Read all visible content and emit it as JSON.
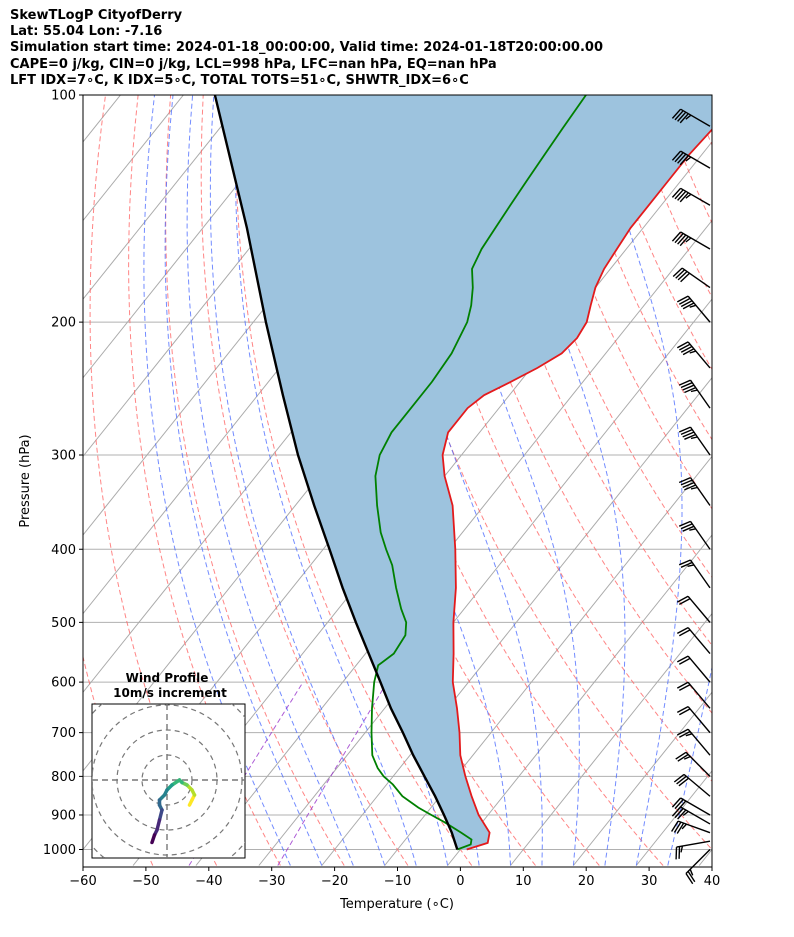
{
  "header": {
    "line1": "SkewTLogP CityofDerry",
    "line2": "Lat: 55.04   Lon: -7.16",
    "line3": "Simulation start time: 2024-01-18_00:00:00, Valid time: 2024-01-18T20:00:00.00",
    "line4": "CAPE=0 j/kg, CIN=0 j/kg, LCL=998 hPa, LFC=nan hPa, EQ=nan hPa",
    "line5": "LFT IDX=7∘C, K IDX=5∘C, TOTAL TOTS=51∘C, SHWTR_IDX=6∘C"
  },
  "chart_data": [
    {
      "type": "line",
      "chart": "skew-t log-p",
      "xlabel": "Temperature (∘C)",
      "ylabel": "Pressure (hPa)",
      "xlim": [
        -60,
        40
      ],
      "ylim": [
        1050,
        100
      ],
      "y_scale": "log",
      "xticks": [
        -60,
        -50,
        -40,
        -30,
        -20,
        -10,
        0,
        10,
        20,
        30,
        40
      ],
      "yticks": [
        1000,
        900,
        800,
        700,
        600,
        500,
        400,
        300,
        200,
        100
      ],
      "grid": true,
      "colors": {
        "temperature": "#e31a1c",
        "dewpoint": "#008000",
        "parcel": "#000000",
        "cape_fill": "#9dc3de",
        "dry_adiabats": "#ff6666",
        "moist_adiabats": "#4466ff",
        "isotherms": "#aaaaaa",
        "mixing_ratio": "#9933cc"
      },
      "series": [
        {
          "key": "temperature",
          "pressure": [
            1000,
            980,
            950,
            900,
            850,
            800,
            750,
            700,
            650,
            600,
            550,
            500,
            450,
            400,
            350,
            320,
            300,
            280,
            260,
            250,
            240,
            230,
            220,
            210,
            200,
            190,
            180,
            170,
            160,
            150,
            140,
            130,
            120,
            110,
            100
          ],
          "values": [
            1.0,
            3.5,
            2.5,
            -1.5,
            -5,
            -8.5,
            -12,
            -15,
            -18.5,
            -22.5,
            -26,
            -30,
            -34,
            -39,
            -45,
            -50,
            -53,
            -55,
            -55,
            -54,
            -51.5,
            -49,
            -47,
            -46.5,
            -47,
            -48.5,
            -50,
            -51,
            -51.5,
            -52,
            -52,
            -52,
            -52,
            -51.5,
            -51
          ]
        },
        {
          "key": "dewpoint",
          "pressure": [
            1000,
            985,
            970,
            950,
            920,
            900,
            880,
            850,
            820,
            800,
            780,
            750,
            700,
            650,
            600,
            570,
            550,
            520,
            500,
            480,
            450,
            420,
            400,
            380,
            350,
            320,
            300,
            280,
            260,
            240,
            220,
            200,
            190,
            180,
            170,
            160,
            150,
            140,
            130,
            120,
            110,
            100
          ],
          "values": [
            -0.5,
            1.0,
            0.5,
            -2.0,
            -6.0,
            -9.0,
            -12.0,
            -16.0,
            -19.0,
            -21.5,
            -23.5,
            -26.0,
            -29.0,
            -32.0,
            -35.0,
            -36.5,
            -35.5,
            -36.0,
            -37.5,
            -40.0,
            -43.5,
            -47.0,
            -50.0,
            -53.0,
            -57.0,
            -61.0,
            -63.0,
            -64.0,
            -64.0,
            -64.0,
            -64.5,
            -66.0,
            -67.5,
            -69.5,
            -72.0,
            -73.0,
            -73.5,
            -74.0,
            -74.5,
            -75.0,
            -75.5,
            -76.0
          ]
        },
        {
          "key": "parcel",
          "pressure": [
            1000,
            950,
            900,
            850,
            800,
            750,
            700,
            650,
            600,
            550,
            500,
            450,
            400,
            350,
            300,
            250,
            200,
            150,
            100
          ],
          "values": [
            -0.5,
            -3.5,
            -7.0,
            -10.8,
            -15.0,
            -19.5,
            -24.0,
            -29.0,
            -34.0,
            -39.5,
            -45.5,
            -52.0,
            -59.0,
            -67.0,
            -76.0,
            -86.0,
            -98.0,
            -113.0,
            -135.0
          ]
        }
      ],
      "wind_barbs": [
        {
          "pressure": 1000,
          "speed_kt": 25,
          "direction_deg": 225
        },
        {
          "pressure": 975,
          "speed_kt": 25,
          "direction_deg": 260
        },
        {
          "pressure": 950,
          "speed_kt": 35,
          "direction_deg": 290
        },
        {
          "pressure": 925,
          "speed_kt": 35,
          "direction_deg": 300
        },
        {
          "pressure": 900,
          "speed_kt": 30,
          "direction_deg": 300
        },
        {
          "pressure": 850,
          "speed_kt": 30,
          "direction_deg": 310
        },
        {
          "pressure": 800,
          "speed_kt": 25,
          "direction_deg": 315
        },
        {
          "pressure": 750,
          "speed_kt": 25,
          "direction_deg": 320
        },
        {
          "pressure": 700,
          "speed_kt": 20,
          "direction_deg": 320
        },
        {
          "pressure": 650,
          "speed_kt": 20,
          "direction_deg": 320
        },
        {
          "pressure": 600,
          "speed_kt": 20,
          "direction_deg": 320
        },
        {
          "pressure": 550,
          "speed_kt": 20,
          "direction_deg": 320
        },
        {
          "pressure": 500,
          "speed_kt": 20,
          "direction_deg": 320
        },
        {
          "pressure": 450,
          "speed_kt": 25,
          "direction_deg": 325
        },
        {
          "pressure": 400,
          "speed_kt": 35,
          "direction_deg": 325
        },
        {
          "pressure": 350,
          "speed_kt": 45,
          "direction_deg": 325
        },
        {
          "pressure": 300,
          "speed_kt": 45,
          "direction_deg": 325
        },
        {
          "pressure": 260,
          "speed_kt": 45,
          "direction_deg": 325
        },
        {
          "pressure": 230,
          "speed_kt": 45,
          "direction_deg": 320
        },
        {
          "pressure": 200,
          "speed_kt": 45,
          "direction_deg": 320
        },
        {
          "pressure": 180,
          "speed_kt": 40,
          "direction_deg": 305
        },
        {
          "pressure": 160,
          "speed_kt": 45,
          "direction_deg": 300
        },
        {
          "pressure": 140,
          "speed_kt": 45,
          "direction_deg": 300
        },
        {
          "pressure": 125,
          "speed_kt": 45,
          "direction_deg": 300
        },
        {
          "pressure": 110,
          "speed_kt": 45,
          "direction_deg": 300
        }
      ]
    },
    {
      "type": "line",
      "chart": "hodograph",
      "title": "Wind Profile",
      "subtitle": "10m/s increment",
      "ring_increment_ms": 10,
      "colormap": "viridis",
      "u": [
        9,
        10,
        11,
        10,
        8,
        6,
        5,
        2,
        0,
        -1,
        -3,
        -3,
        -2,
        -3,
        -4,
        -5,
        -6
      ],
      "v": [
        -10,
        -8,
        -6,
        -4,
        -2,
        -1,
        0,
        -2,
        -4,
        -6,
        -8,
        -10,
        -12,
        -16,
        -20,
        -22,
        -25
      ]
    }
  ]
}
